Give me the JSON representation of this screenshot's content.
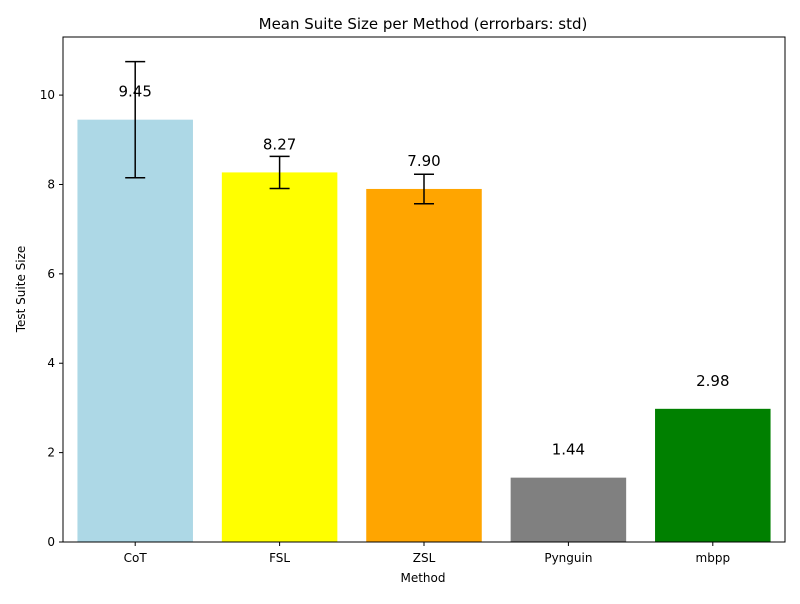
{
  "chart_data": {
    "type": "bar",
    "title": "Mean Suite Size per Method (errorbars: std)",
    "xlabel": "Method",
    "ylabel": "Test Suite Size",
    "categories": [
      "CoT",
      "FSL",
      "ZSL",
      "Pynguin",
      "mbpp"
    ],
    "values": [
      9.45,
      8.27,
      7.9,
      1.44,
      2.98
    ],
    "value_labels": [
      "9.45",
      "8.27",
      "7.90",
      "1.44",
      "2.98"
    ],
    "std": [
      1.3,
      0.36,
      0.33,
      null,
      null
    ],
    "colors": [
      "#add8e6",
      "#ffff00",
      "#ffa500",
      "#808080",
      "#008000"
    ],
    "ylim": [
      0,
      11.3
    ],
    "yticks": [
      0,
      2,
      4,
      6,
      8,
      10
    ],
    "ytick_labels": [
      "0",
      "2",
      "4",
      "6",
      "8",
      "10"
    ],
    "grid": false,
    "legend": "none"
  }
}
